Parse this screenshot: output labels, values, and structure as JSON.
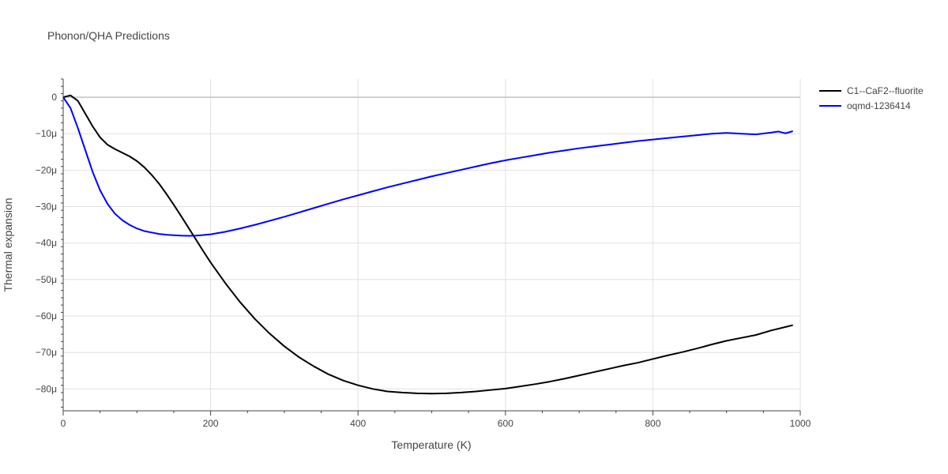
{
  "chart_data": {
    "type": "line",
    "title": "Phonon/QHA Predictions",
    "xlabel": "Temperature (K)",
    "ylabel": "Thermal expansion",
    "xlim": [
      0,
      1000
    ],
    "ylim": [
      -86,
      5
    ],
    "xticks": [
      0,
      200,
      400,
      600,
      800,
      1000
    ],
    "xtick_labels": [
      "0",
      "200",
      "400",
      "600",
      "800",
      "1000"
    ],
    "yticks": [
      0,
      -10,
      -20,
      -30,
      -40,
      -50,
      -60,
      -70,
      -80
    ],
    "ytick_labels": [
      "0",
      "−10μ",
      "−20μ",
      "−30μ",
      "−40μ",
      "−50μ",
      "−60μ",
      "−70μ",
      "−80μ"
    ],
    "grid": true,
    "legend": "top-right",
    "series": [
      {
        "name": "C1--CaF2--fluorite",
        "color": "#000000",
        "x": [
          0,
          10,
          20,
          30,
          40,
          50,
          60,
          70,
          80,
          90,
          100,
          110,
          120,
          130,
          140,
          150,
          160,
          170,
          180,
          190,
          200,
          220,
          240,
          260,
          280,
          300,
          320,
          340,
          360,
          380,
          400,
          420,
          440,
          460,
          480,
          500,
          520,
          540,
          560,
          580,
          600,
          620,
          640,
          660,
          680,
          700,
          720,
          740,
          760,
          780,
          800,
          820,
          840,
          860,
          880,
          900,
          920,
          940,
          960,
          980,
          990
        ],
        "y": [
          0,
          0.5,
          -1,
          -4.5,
          -8,
          -11,
          -13,
          -14.2,
          -15.2,
          -16.2,
          -17.5,
          -19.2,
          -21.3,
          -23.7,
          -26.5,
          -29.5,
          -32.6,
          -35.8,
          -39,
          -42.2,
          -45.3,
          -51,
          -56.2,
          -60.8,
          -64.8,
          -68.3,
          -71.3,
          -73.8,
          -76,
          -77.7,
          -79,
          -80,
          -80.7,
          -81,
          -81.2,
          -81.3,
          -81.2,
          -81,
          -80.7,
          -80.3,
          -79.9,
          -79.3,
          -78.7,
          -78,
          -77.2,
          -76.3,
          -75.4,
          -74.5,
          -73.6,
          -72.8,
          -71.8,
          -70.8,
          -69.9,
          -68.9,
          -67.8,
          -66.8,
          -66,
          -65.2,
          -64,
          -63,
          -62.5
        ]
      },
      {
        "name": "oqmd-1236414",
        "color": "#0000ff",
        "x": [
          0,
          10,
          20,
          30,
          40,
          50,
          60,
          70,
          80,
          90,
          100,
          110,
          120,
          130,
          140,
          150,
          160,
          170,
          180,
          190,
          200,
          220,
          240,
          260,
          280,
          300,
          320,
          340,
          360,
          380,
          400,
          420,
          440,
          460,
          480,
          500,
          520,
          540,
          560,
          580,
          600,
          620,
          640,
          660,
          680,
          700,
          720,
          740,
          760,
          780,
          800,
          820,
          840,
          860,
          880,
          900,
          920,
          940,
          960,
          970,
          980,
          990
        ],
        "y": [
          0,
          -3,
          -8.5,
          -14.5,
          -20.5,
          -25.5,
          -29.2,
          -31.9,
          -33.7,
          -35,
          -36,
          -36.7,
          -37.1,
          -37.5,
          -37.7,
          -37.85,
          -37.95,
          -38,
          -37.95,
          -37.8,
          -37.6,
          -36.9,
          -36,
          -35,
          -33.9,
          -32.8,
          -31.6,
          -30.4,
          -29.2,
          -28,
          -26.9,
          -25.8,
          -24.7,
          -23.7,
          -22.7,
          -21.7,
          -20.8,
          -19.9,
          -19,
          -18.1,
          -17.3,
          -16.6,
          -15.9,
          -15.2,
          -14.6,
          -14,
          -13.5,
          -13,
          -12.5,
          -12,
          -11.6,
          -11.2,
          -10.8,
          -10.4,
          -10,
          -9.8,
          -10,
          -10.2,
          -9.7,
          -9.4,
          -9.9,
          -9.3
        ]
      }
    ]
  }
}
